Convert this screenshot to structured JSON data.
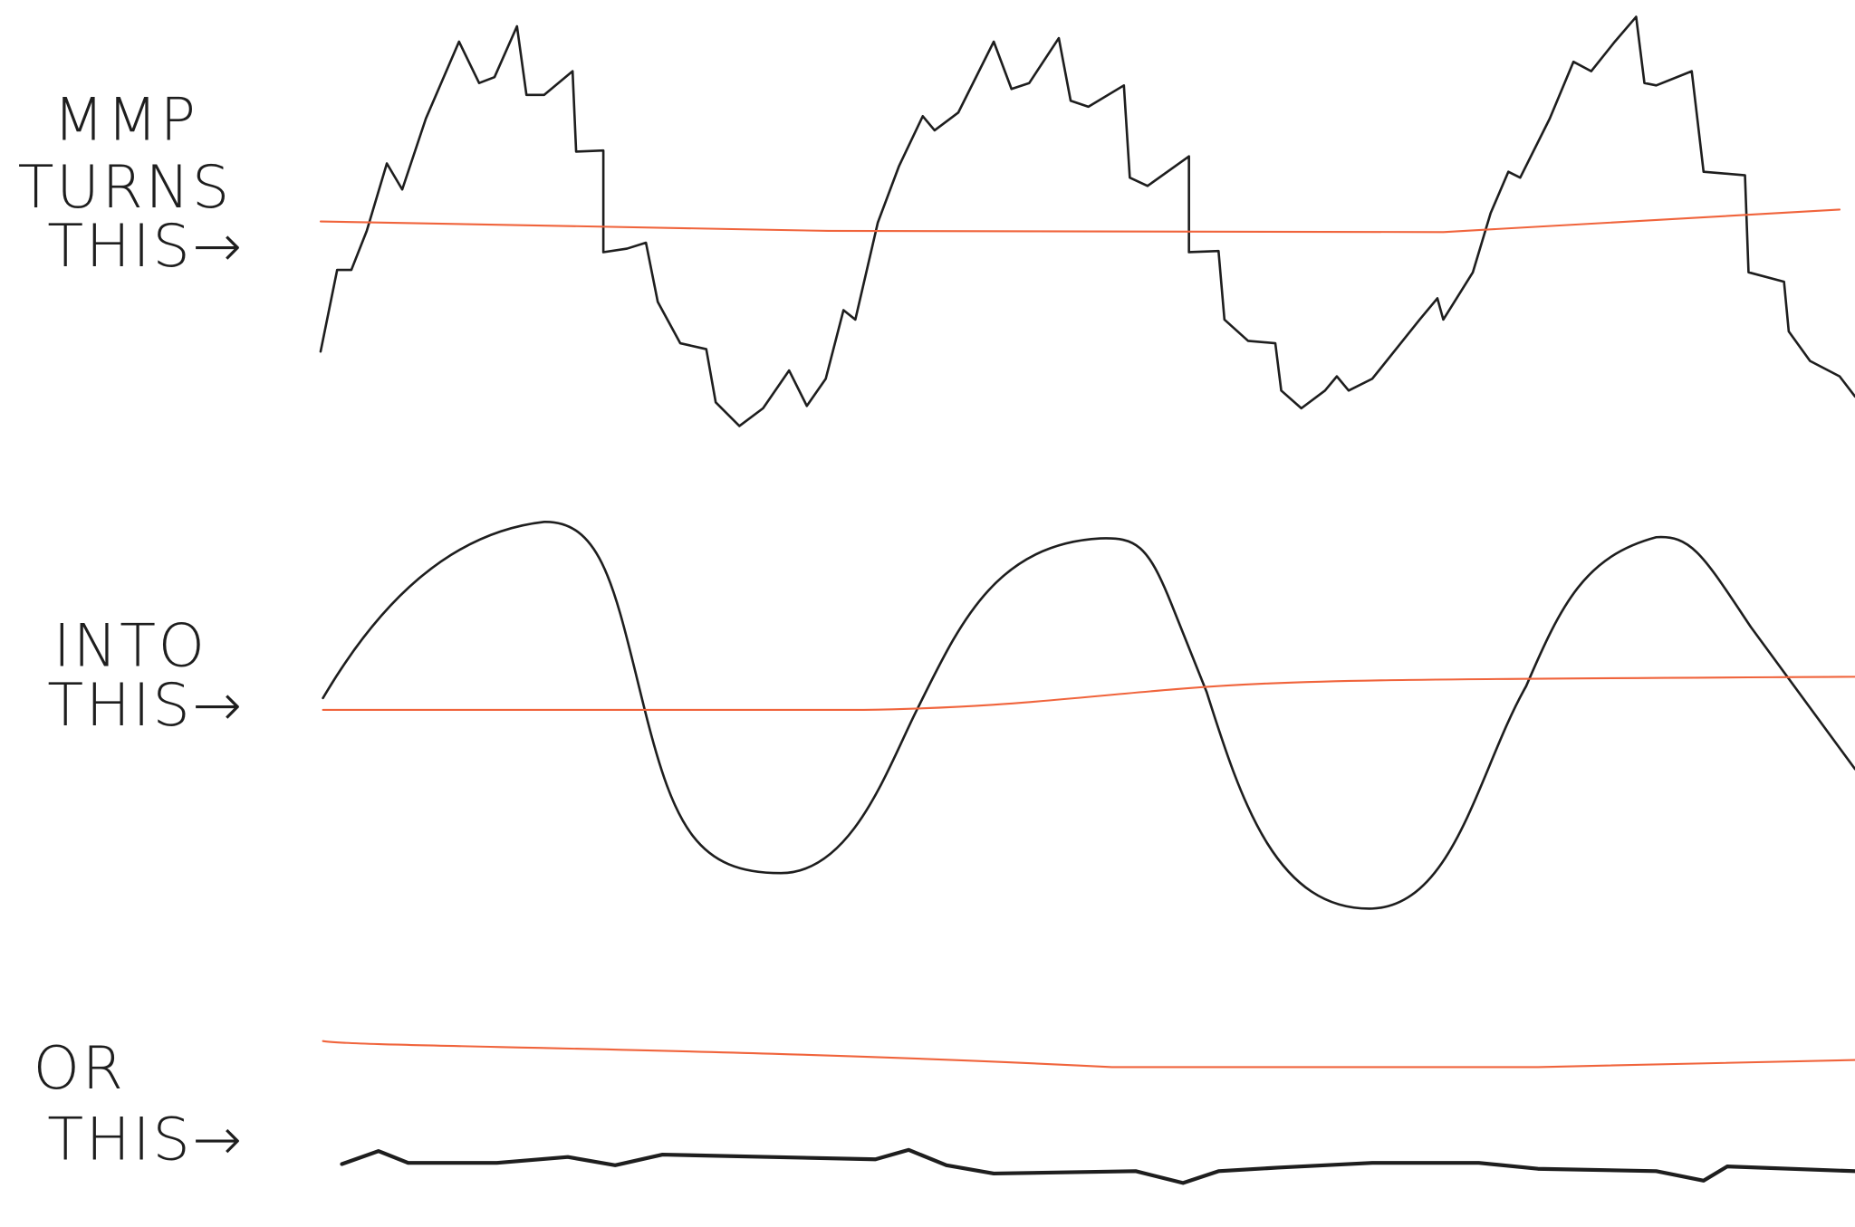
{
  "labels": [
    {
      "lines": [
        "MMP",
        "TURNS",
        "THIS→"
      ]
    },
    {
      "lines": [
        "INTO",
        "THIS→"
      ]
    },
    {
      "lines": [
        "OR",
        "THIS→"
      ]
    }
  ]
}
